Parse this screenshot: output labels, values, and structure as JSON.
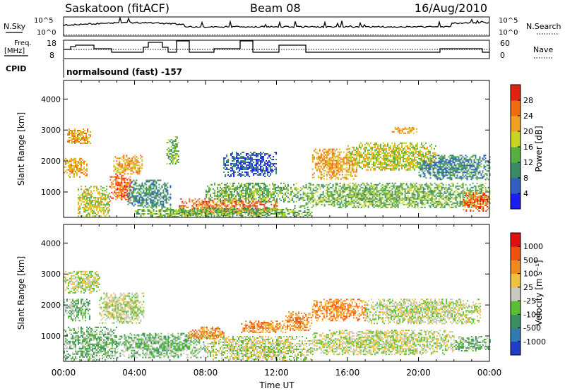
{
  "header": {
    "station": "Saskatoon (fitACF)",
    "beam": "Beam 08",
    "date": "16/Aug/2010"
  },
  "strips": {
    "nsky_label": "N.Sky",
    "nsearch_label": "N.Search",
    "count_ticks": [
      "10^5",
      "10^0"
    ],
    "freq_label_line1": "Freq.",
    "freq_label_line2": "[MHz]",
    "freq_ticks": [
      "18",
      "8"
    ],
    "nave_label": "Nave",
    "nave_ticks": [
      "60",
      "0"
    ],
    "cpid_label": "CPID",
    "cpid_text": "normalsound (fast) -157"
  },
  "chart_data": [
    {
      "type": "heatmap",
      "name": "power",
      "xlabel": "",
      "ylabel": "Slant Range [km]",
      "xlim": [
        0,
        24
      ],
      "ylim": [
        180,
        4600
      ],
      "y_ticks": [
        "1000",
        "2000",
        "3000",
        "4000"
      ],
      "colorbar": {
        "label": "Power [dB]",
        "ticks": [
          "4",
          "8",
          "12",
          "16",
          "20",
          "24",
          "28"
        ],
        "colors": [
          "#1d1df2",
          "#2f5fc0",
          "#3a8a66",
          "#55b040",
          "#c8d520",
          "#f0a020",
          "#f06a10",
          "#e02010"
        ]
      },
      "regions": [
        {
          "t0": 0.2,
          "t1": 1.5,
          "r0": 2550,
          "r1": 3050,
          "level": 5
        },
        {
          "t0": 0.0,
          "t1": 1.3,
          "r0": 1500,
          "r1": 2100,
          "level": 5
        },
        {
          "t0": 0.8,
          "t1": 2.6,
          "r0": 200,
          "r1": 1200,
          "level": 4
        },
        {
          "t0": 2.6,
          "t1": 3.8,
          "r0": 700,
          "r1": 1600,
          "level": 6
        },
        {
          "t0": 2.8,
          "t1": 4.4,
          "r0": 1600,
          "r1": 2200,
          "level": 5
        },
        {
          "t0": 3.6,
          "t1": 6.0,
          "r0": 500,
          "r1": 1400,
          "level": 2
        },
        {
          "t0": 5.8,
          "t1": 6.5,
          "r0": 1900,
          "r1": 2800,
          "level": 3
        },
        {
          "t0": 6.5,
          "t1": 12.0,
          "r0": 300,
          "r1": 800,
          "level": 6
        },
        {
          "t0": 4.0,
          "t1": 14.0,
          "r0": 200,
          "r1": 500,
          "level": 3
        },
        {
          "t0": 8.0,
          "t1": 13.0,
          "r0": 700,
          "r1": 1300,
          "level": 3
        },
        {
          "t0": 9.0,
          "t1": 12.0,
          "r0": 1500,
          "r1": 2300,
          "level": 1
        },
        {
          "t0": 14.0,
          "t1": 16.5,
          "r0": 1400,
          "r1": 2400,
          "level": 5
        },
        {
          "t0": 16.0,
          "t1": 21.0,
          "r0": 1700,
          "r1": 2600,
          "level": 4
        },
        {
          "t0": 18.5,
          "t1": 20.0,
          "r0": 2900,
          "r1": 3100,
          "level": 5
        },
        {
          "t0": 13.0,
          "t1": 24.0,
          "r0": 500,
          "r1": 1300,
          "level": 3
        },
        {
          "t0": 20.0,
          "t1": 24.0,
          "r0": 1400,
          "r1": 2200,
          "level": 2
        },
        {
          "t0": 22.5,
          "t1": 24.0,
          "r0": 400,
          "r1": 1000,
          "level": 6
        }
      ]
    },
    {
      "type": "heatmap",
      "name": "velocity",
      "xlabel": "Time UT",
      "ylabel": "Slant Range [km]",
      "xlim": [
        0,
        24
      ],
      "ylim": [
        180,
        4600
      ],
      "x_ticks": [
        "00:00",
        "04:00",
        "08:00",
        "12:00",
        "16:00",
        "20:00",
        "00:00"
      ],
      "y_ticks": [
        "1000",
        "2000",
        "3000",
        "4000"
      ],
      "colorbar": {
        "label": "Velocity [m s⁻¹]",
        "ticks": [
          "1000",
          "500",
          "100",
          "25",
          "-25",
          "-100",
          "-500",
          "-1000"
        ],
        "colors": [
          "#1d3fc8",
          "#2f7ab0",
          "#3a9060",
          "#58c030",
          "#c8c8c0",
          "#f0c040",
          "#f08a20",
          "#f05010",
          "#e01010"
        ]
      },
      "regions": [
        {
          "t0": 0.0,
          "t1": 2.0,
          "r0": 2400,
          "r1": 3100,
          "level": 4
        },
        {
          "t0": 0.0,
          "t1": 1.5,
          "r0": 1500,
          "r1": 2200,
          "level": 3
        },
        {
          "t0": 0.0,
          "t1": 3.0,
          "r0": 200,
          "r1": 1300,
          "level": 3
        },
        {
          "t0": 2.0,
          "t1": 4.5,
          "r0": 1400,
          "r1": 2400,
          "level": 4
        },
        {
          "t0": 3.0,
          "t1": 8.0,
          "r0": 300,
          "r1": 1100,
          "level": 3
        },
        {
          "t0": 7.0,
          "t1": 9.0,
          "r0": 900,
          "r1": 1300,
          "level": 6
        },
        {
          "t0": 10.0,
          "t1": 12.5,
          "r0": 1100,
          "r1": 1500,
          "level": 6
        },
        {
          "t0": 12.5,
          "t1": 14.0,
          "r0": 1200,
          "r1": 1800,
          "level": 6
        },
        {
          "t0": 14.0,
          "t1": 17.0,
          "r0": 1500,
          "r1": 2200,
          "level": 6
        },
        {
          "t0": 8.0,
          "t1": 14.0,
          "r0": 200,
          "r1": 1000,
          "level": 4
        },
        {
          "t0": 14.0,
          "t1": 22.0,
          "r0": 400,
          "r1": 1200,
          "level": 4
        },
        {
          "t0": 17.0,
          "t1": 23.5,
          "r0": 1400,
          "r1": 2200,
          "level": 4
        },
        {
          "t0": 22.0,
          "t1": 24.0,
          "r0": 500,
          "r1": 1000,
          "level": 3
        }
      ]
    }
  ]
}
